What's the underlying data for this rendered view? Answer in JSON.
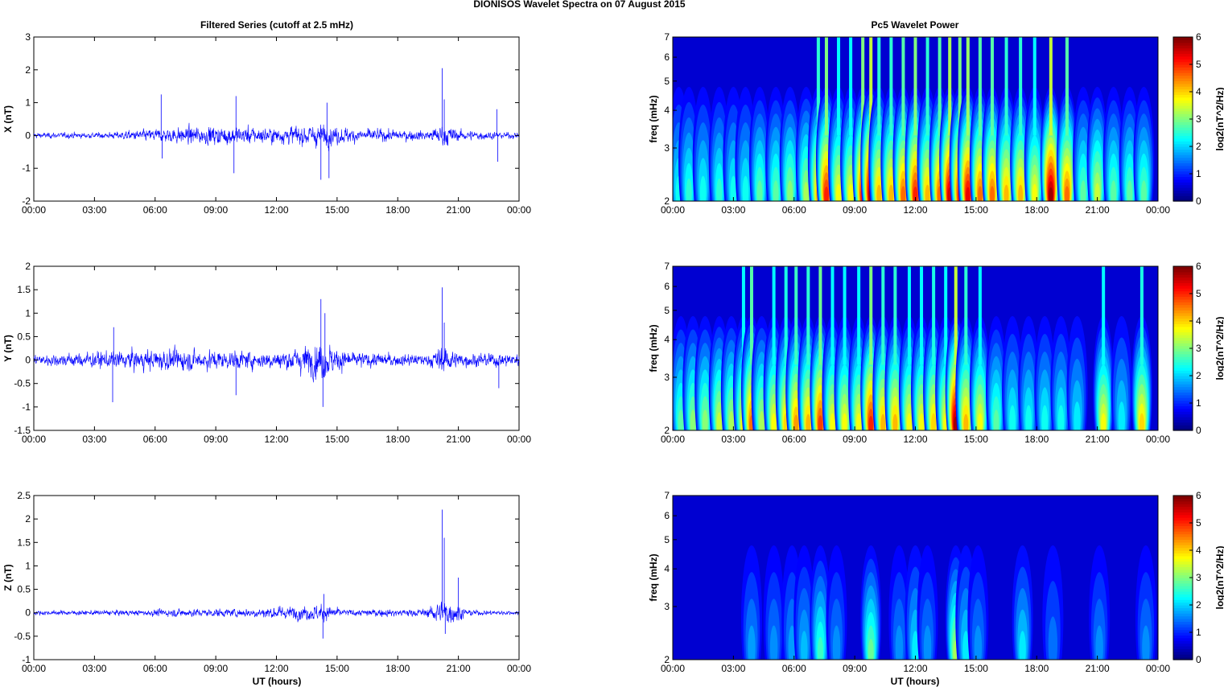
{
  "figure": {
    "title": "DIONISOS Wavelet Spectra on 07 August    2015",
    "left_title": "Filtered Series (cutoff at 2.5 mHz)",
    "right_title": "Pc5 Wavelet Power",
    "xlabel": "UT (hours)"
  },
  "colors": {
    "trace": "#0000ff",
    "background": "#00008f",
    "colormap": "jet"
  },
  "chart_data": [
    {
      "type": "line",
      "component": "X",
      "ylabel": "X (nT)",
      "x_ticks": [
        "00:00",
        "03:00",
        "06:00",
        "09:00",
        "12:00",
        "15:00",
        "18:00",
        "21:00",
        "00:00"
      ],
      "y_ticks": [
        "-2",
        "-1",
        "0",
        "1",
        "2",
        "3"
      ],
      "ylim": [
        -2,
        3
      ],
      "xlim_hours": [
        0,
        24
      ],
      "envelope": [
        {
          "t": 0,
          "amp": 0.15
        },
        {
          "t": 3.5,
          "amp": 0.15
        },
        {
          "t": 5.5,
          "amp": 0.3
        },
        {
          "t": 7.5,
          "amp": 0.45
        },
        {
          "t": 9.5,
          "amp": 0.5
        },
        {
          "t": 12,
          "amp": 0.4
        },
        {
          "t": 14,
          "amp": 0.6
        },
        {
          "t": 16,
          "amp": 0.35
        },
        {
          "t": 19.5,
          "amp": 0.25
        },
        {
          "t": 20.2,
          "amp": 0.6
        },
        {
          "t": 21,
          "amp": 0.3
        },
        {
          "t": 23,
          "amp": 0.18
        },
        {
          "t": 24,
          "amp": 0.15
        }
      ],
      "spikes": [
        {
          "t": 6.3,
          "v": 1.25
        },
        {
          "t": 6.35,
          "v": -0.7
        },
        {
          "t": 10.0,
          "v": 1.2
        },
        {
          "t": 9.9,
          "v": -1.15
        },
        {
          "t": 14.2,
          "v": -1.35
        },
        {
          "t": 14.5,
          "v": 1.0
        },
        {
          "t": 14.6,
          "v": -1.3
        },
        {
          "t": 20.2,
          "v": 2.05
        },
        {
          "t": 20.3,
          "v": 1.1
        },
        {
          "t": 22.9,
          "v": 0.8
        },
        {
          "t": 22.95,
          "v": -0.8
        }
      ]
    },
    {
      "type": "line",
      "component": "Y",
      "ylabel": "Y (nT)",
      "x_ticks": [
        "00:00",
        "03:00",
        "06:00",
        "09:00",
        "12:00",
        "15:00",
        "18:00",
        "21:00",
        "00:00"
      ],
      "y_ticks": [
        "-1.5",
        "-1",
        "-0.5",
        "0",
        "0.5",
        "1",
        "1.5",
        "2"
      ],
      "ylim": [
        -1.5,
        2
      ],
      "xlim_hours": [
        0,
        24
      ],
      "envelope": [
        {
          "t": 0,
          "amp": 0.2
        },
        {
          "t": 3,
          "amp": 0.3
        },
        {
          "t": 6,
          "amp": 0.4
        },
        {
          "t": 9,
          "amp": 0.35
        },
        {
          "t": 12,
          "amp": 0.3
        },
        {
          "t": 14.3,
          "amp": 0.7
        },
        {
          "t": 15.5,
          "amp": 0.3
        },
        {
          "t": 19.5,
          "amp": 0.2
        },
        {
          "t": 20.2,
          "amp": 0.55
        },
        {
          "t": 21,
          "amp": 0.25
        },
        {
          "t": 24,
          "amp": 0.25
        }
      ],
      "spikes": [
        {
          "t": 3.9,
          "v": -0.9
        },
        {
          "t": 3.95,
          "v": 0.7
        },
        {
          "t": 10.0,
          "v": -0.75
        },
        {
          "t": 14.2,
          "v": 1.3
        },
        {
          "t": 14.3,
          "v": -1.0
        },
        {
          "t": 14.4,
          "v": 1.0
        },
        {
          "t": 20.2,
          "v": 1.55
        },
        {
          "t": 20.3,
          "v": 0.8
        },
        {
          "t": 23.0,
          "v": -0.6
        }
      ]
    },
    {
      "type": "line",
      "component": "Z",
      "ylabel": "Z (nT)",
      "x_ticks": [
        "00:00",
        "03:00",
        "06:00",
        "09:00",
        "12:00",
        "15:00",
        "18:00",
        "21:00",
        "00:00"
      ],
      "y_ticks": [
        "-1",
        "-0.5",
        "0",
        "0.5",
        "1",
        "1.5",
        "2",
        "2.5"
      ],
      "ylim": [
        -1,
        2.5
      ],
      "xlim_hours": [
        0,
        24
      ],
      "envelope": [
        {
          "t": 0,
          "amp": 0.08
        },
        {
          "t": 5,
          "amp": 0.1
        },
        {
          "t": 7,
          "amp": 0.15
        },
        {
          "t": 10,
          "amp": 0.15
        },
        {
          "t": 14.3,
          "amp": 0.3
        },
        {
          "t": 15.5,
          "amp": 0.12
        },
        {
          "t": 19.5,
          "amp": 0.15
        },
        {
          "t": 20.2,
          "amp": 0.55
        },
        {
          "t": 21.0,
          "amp": 0.3
        },
        {
          "t": 21.5,
          "amp": 0.1
        },
        {
          "t": 24,
          "amp": 0.08
        }
      ],
      "spikes": [
        {
          "t": 14.3,
          "v": -0.55
        },
        {
          "t": 14.35,
          "v": 0.4
        },
        {
          "t": 20.2,
          "v": 2.2
        },
        {
          "t": 20.3,
          "v": 1.6
        },
        {
          "t": 20.35,
          "v": -0.45
        },
        {
          "t": 21.0,
          "v": 0.75
        }
      ]
    },
    {
      "type": "heatmap",
      "component": "X",
      "ylabel": "freq (mHz)",
      "colorbar_label": "log2(nT^2/Hz)",
      "colorbar_ticks": [
        "0",
        "1",
        "2",
        "3",
        "4",
        "5",
        "6"
      ],
      "clim": [
        0,
        6
      ],
      "y_ticks": [
        "2",
        "3",
        "4",
        "5",
        "6",
        "7"
      ],
      "ylim_mhz": [
        2,
        7
      ],
      "y_scale": "log",
      "x_ticks": [
        "00:00",
        "03:00",
        "06:00",
        "09:00",
        "12:00",
        "15:00",
        "18:00",
        "21:00",
        "00:00"
      ],
      "xlim_hours": [
        0,
        24
      ],
      "bursts": [
        {
          "t": 0.3,
          "peak": 2.0
        },
        {
          "t": 0.8,
          "peak": 2.2
        },
        {
          "t": 1.5,
          "peak": 2.0
        },
        {
          "t": 2.3,
          "peak": 2.2
        },
        {
          "t": 3.0,
          "peak": 2.0
        },
        {
          "t": 3.6,
          "peak": 2.0
        },
        {
          "t": 4.3,
          "peak": 2.5
        },
        {
          "t": 5.1,
          "peak": 2.5
        },
        {
          "t": 5.8,
          "peak": 2.8
        },
        {
          "t": 6.6,
          "peak": 3.0
        },
        {
          "t": 7.2,
          "peak": 4.0
        },
        {
          "t": 7.6,
          "peak": 5.0
        },
        {
          "t": 8.2,
          "peak": 3.5
        },
        {
          "t": 8.8,
          "peak": 3.5
        },
        {
          "t": 9.4,
          "peak": 5.0
        },
        {
          "t": 9.8,
          "peak": 5.8
        },
        {
          "t": 10.2,
          "peak": 4.0
        },
        {
          "t": 10.8,
          "peak": 4.0
        },
        {
          "t": 11.4,
          "peak": 4.5
        },
        {
          "t": 12.0,
          "peak": 5.0
        },
        {
          "t": 12.6,
          "peak": 4.0
        },
        {
          "t": 13.2,
          "peak": 4.5
        },
        {
          "t": 13.7,
          "peak": 5.5
        },
        {
          "t": 14.2,
          "peak": 5.0
        },
        {
          "t": 14.6,
          "peak": 5.3
        },
        {
          "t": 15.2,
          "peak": 4.5
        },
        {
          "t": 15.8,
          "peak": 4.5
        },
        {
          "t": 16.5,
          "peak": 4.0
        },
        {
          "t": 17.2,
          "peak": 4.0
        },
        {
          "t": 17.9,
          "peak": 3.5
        },
        {
          "t": 18.7,
          "peak": 5.8
        },
        {
          "t": 19.5,
          "peak": 4.5
        },
        {
          "t": 20.3,
          "peak": 2.5
        },
        {
          "t": 21.0,
          "peak": 3.2
        },
        {
          "t": 21.8,
          "peak": 2.5
        },
        {
          "t": 22.6,
          "peak": 2.5
        },
        {
          "t": 23.3,
          "peak": 2.5
        }
      ]
    },
    {
      "type": "heatmap",
      "component": "Y",
      "ylabel": "freq (mHz)",
      "colorbar_label": "log2(nT^2/Hz)",
      "colorbar_ticks": [
        "0",
        "1",
        "2",
        "3",
        "4",
        "5",
        "6"
      ],
      "clim": [
        0,
        6
      ],
      "y_ticks": [
        "2",
        "3",
        "4",
        "5",
        "6",
        "7"
      ],
      "ylim_mhz": [
        2,
        7
      ],
      "y_scale": "log",
      "x_ticks": [
        "00:00",
        "03:00",
        "06:00",
        "09:00",
        "12:00",
        "15:00",
        "18:00",
        "21:00",
        "00:00"
      ],
      "xlim_hours": [
        0,
        24
      ],
      "bursts": [
        {
          "t": 0.4,
          "peak": 2.5
        },
        {
          "t": 1.0,
          "peak": 2.8
        },
        {
          "t": 1.6,
          "peak": 2.8
        },
        {
          "t": 2.3,
          "peak": 3.2
        },
        {
          "t": 2.9,
          "peak": 3.0
        },
        {
          "t": 3.5,
          "peak": 3.5
        },
        {
          "t": 3.9,
          "peak": 4.5
        },
        {
          "t": 4.4,
          "peak": 3.0
        },
        {
          "t": 5.0,
          "peak": 3.5
        },
        {
          "t": 5.6,
          "peak": 3.8
        },
        {
          "t": 6.1,
          "peak": 4.2
        },
        {
          "t": 6.7,
          "peak": 4.0
        },
        {
          "t": 7.3,
          "peak": 4.8
        },
        {
          "t": 7.9,
          "peak": 3.5
        },
        {
          "t": 8.5,
          "peak": 3.5
        },
        {
          "t": 9.2,
          "peak": 3.5
        },
        {
          "t": 9.8,
          "peak": 5.0
        },
        {
          "t": 10.4,
          "peak": 4.0
        },
        {
          "t": 11.0,
          "peak": 4.0
        },
        {
          "t": 11.7,
          "peak": 3.5
        },
        {
          "t": 12.3,
          "peak": 3.5
        },
        {
          "t": 12.9,
          "peak": 3.8
        },
        {
          "t": 13.5,
          "peak": 3.5
        },
        {
          "t": 14.0,
          "peak": 5.8
        },
        {
          "t": 14.5,
          "peak": 4.0
        },
        {
          "t": 15.2,
          "peak": 3.5
        },
        {
          "t": 16.0,
          "peak": 2.5
        },
        {
          "t": 16.8,
          "peak": 2.0
        },
        {
          "t": 17.6,
          "peak": 2.0
        },
        {
          "t": 18.4,
          "peak": 2.0
        },
        {
          "t": 19.2,
          "peak": 2.0
        },
        {
          "t": 20.0,
          "peak": 1.8
        },
        {
          "t": 21.3,
          "peak": 3.5
        },
        {
          "t": 22.2,
          "peak": 1.8
        },
        {
          "t": 23.2,
          "peak": 3.8
        }
      ]
    },
    {
      "type": "heatmap",
      "component": "Z",
      "ylabel": "freq (mHz)",
      "colorbar_label": "log2(nT^2/Hz)",
      "colorbar_ticks": [
        "0",
        "1",
        "2",
        "3",
        "4",
        "5",
        "6"
      ],
      "clim": [
        0,
        6
      ],
      "y_ticks": [
        "2",
        "3",
        "4",
        "5",
        "6",
        "7"
      ],
      "ylim_mhz": [
        2,
        7
      ],
      "y_scale": "log",
      "x_ticks": [
        "00:00",
        "03:00",
        "06:00",
        "09:00",
        "12:00",
        "15:00",
        "18:00",
        "21:00",
        "00:00"
      ],
      "xlim_hours": [
        0,
        24
      ],
      "bursts": [
        {
          "t": 3.9,
          "peak": 1.3
        },
        {
          "t": 5.0,
          "peak": 1.2
        },
        {
          "t": 5.9,
          "peak": 1.3
        },
        {
          "t": 6.5,
          "peak": 1.5
        },
        {
          "t": 7.3,
          "peak": 2.3
        },
        {
          "t": 8.1,
          "peak": 1.2
        },
        {
          "t": 9.8,
          "peak": 2.6
        },
        {
          "t": 11.2,
          "peak": 1.2
        },
        {
          "t": 12.0,
          "peak": 1.8
        },
        {
          "t": 12.6,
          "peak": 1.2
        },
        {
          "t": 14.0,
          "peak": 3.0
        },
        {
          "t": 14.5,
          "peak": 1.8
        },
        {
          "t": 15.1,
          "peak": 1.2
        },
        {
          "t": 17.3,
          "peak": 1.8
        },
        {
          "t": 18.8,
          "peak": 1.0
        },
        {
          "t": 21.1,
          "peak": 1.2
        },
        {
          "t": 23.4,
          "peak": 1.2
        }
      ]
    }
  ]
}
